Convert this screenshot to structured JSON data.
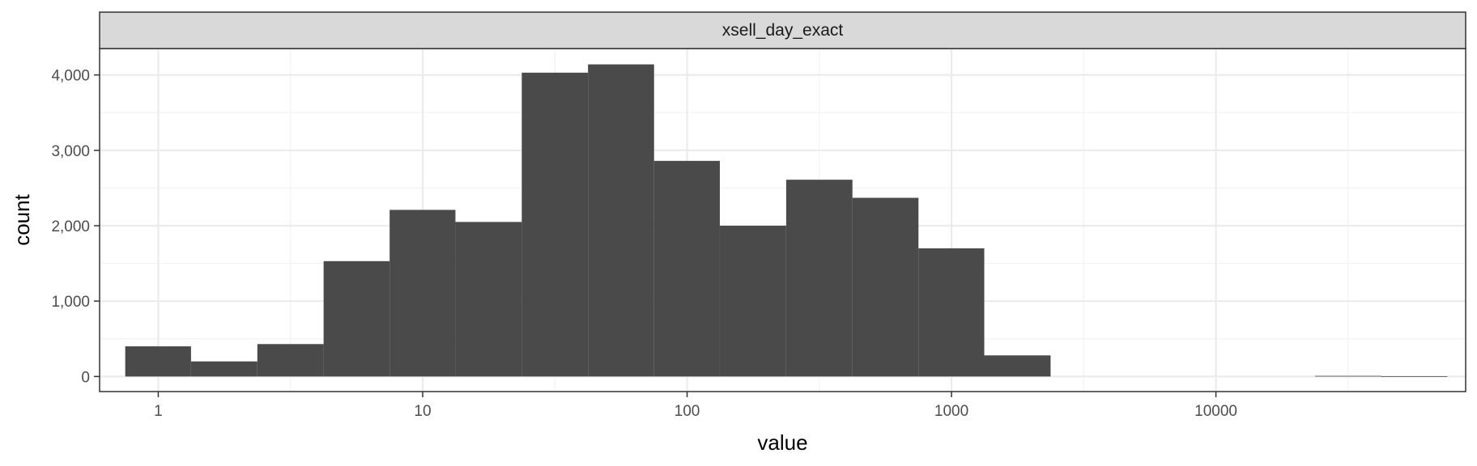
{
  "chart_data": {
    "type": "bar",
    "facet_label": "xsell_day_exact",
    "xlabel": "value",
    "ylabel": "count",
    "x_scale": "log10",
    "xlim": [
      0.6,
      88000
    ],
    "ylim": [
      -200,
      4350
    ],
    "x_ticks": [
      {
        "value": 1,
        "label": "1"
      },
      {
        "value": 10,
        "label": "10"
      },
      {
        "value": 100,
        "label": "100"
      },
      {
        "value": 1000,
        "label": "1000"
      },
      {
        "value": 10000,
        "label": "10000"
      }
    ],
    "x_minor_ticks": [
      3.16,
      31.6,
      316,
      3160,
      31600
    ],
    "y_ticks": [
      {
        "value": 0,
        "label": "0"
      },
      {
        "value": 1000,
        "label": "1,000"
      },
      {
        "value": 2000,
        "label": "2,000"
      },
      {
        "value": 3000,
        "label": "3,000"
      },
      {
        "value": 4000,
        "label": "4,000"
      }
    ],
    "y_minor_ticks": [
      500,
      1500,
      2500,
      3500
    ],
    "bins": [
      {
        "x0": 0.75,
        "x1": 1.33,
        "count": 400
      },
      {
        "x0": 1.33,
        "x1": 2.37,
        "count": 200
      },
      {
        "x0": 2.37,
        "x1": 4.22,
        "count": 430
      },
      {
        "x0": 4.22,
        "x1": 7.5,
        "count": 1530
      },
      {
        "x0": 7.5,
        "x1": 13.3,
        "count": 2210
      },
      {
        "x0": 13.3,
        "x1": 23.7,
        "count": 2050
      },
      {
        "x0": 23.7,
        "x1": 42.2,
        "count": 4030
      },
      {
        "x0": 42.2,
        "x1": 75,
        "count": 4140
      },
      {
        "x0": 75,
        "x1": 133,
        "count": 2860
      },
      {
        "x0": 133,
        "x1": 237,
        "count": 2000
      },
      {
        "x0": 237,
        "x1": 422,
        "count": 2610
      },
      {
        "x0": 422,
        "x1": 750,
        "count": 2370
      },
      {
        "x0": 750,
        "x1": 1330,
        "count": 1700
      },
      {
        "x0": 1330,
        "x1": 2370,
        "count": 280
      },
      {
        "x0": 23700,
        "x1": 42200,
        "count": 8
      },
      {
        "x0": 42200,
        "x1": 75000,
        "count": 4
      }
    ],
    "colors": {
      "bar": "#4a4a4a",
      "panel_background": "#ffffff",
      "grid_major": "#ebebeb",
      "grid_minor": "#f3f3f3",
      "panel_border": "#333333",
      "strip_fill": "#d9d9d9"
    },
    "grid": true,
    "legend": "none"
  }
}
